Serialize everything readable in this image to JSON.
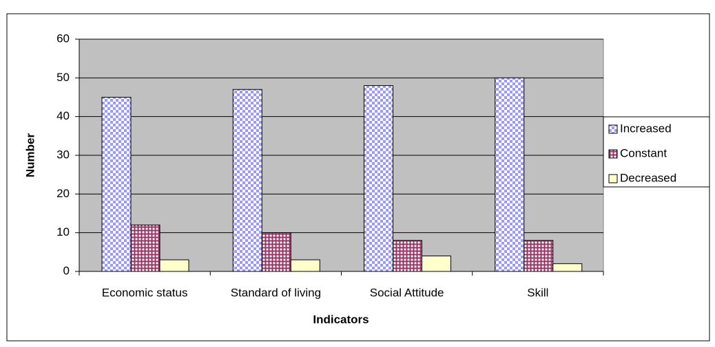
{
  "chart_data": {
    "type": "bar",
    "y_label": "Number",
    "x_label": "Indicators",
    "categories": [
      "Economic status",
      "Standard of living",
      "Social Attitude",
      "Skill"
    ],
    "series": [
      {
        "name": "Increased",
        "color": "#9999ff",
        "values": [
          45,
          47,
          48,
          50
        ]
      },
      {
        "name": "Constant",
        "color": "#993366",
        "values": [
          12,
          10,
          8,
          8
        ]
      },
      {
        "name": "Decreased",
        "color": "#ffffcc",
        "values": [
          3,
          3,
          4,
          2
        ]
      }
    ],
    "ylim": [
      0,
      60
    ],
    "yticks": [
      0,
      10,
      20,
      30,
      40,
      50,
      60
    ],
    "grid": true,
    "legend": "right"
  }
}
